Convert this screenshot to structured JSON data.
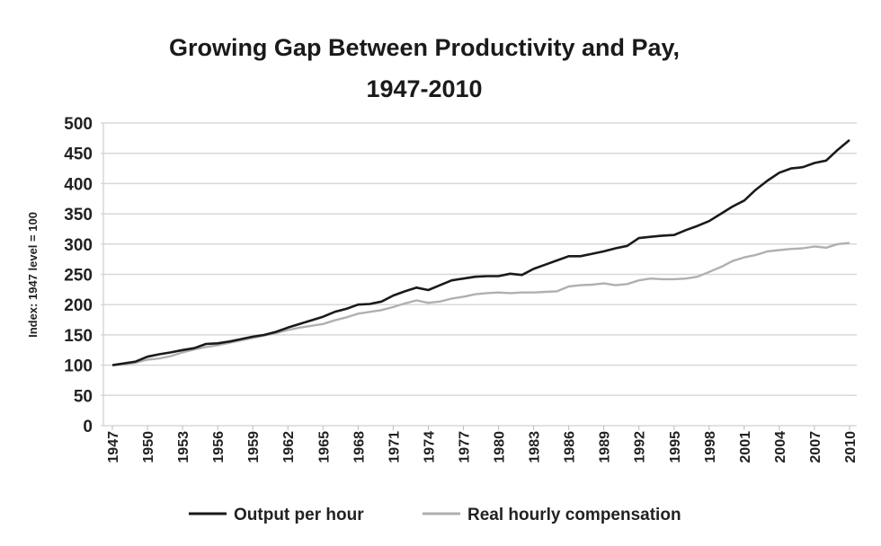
{
  "chart_data": {
    "type": "line",
    "title": "Growing Gap Between Productivity and Pay,",
    "subtitle": "1947-2010",
    "xlabel": "",
    "ylabel": "Index: 1947 level = 100",
    "ylim": [
      0,
      500
    ],
    "yticks": [
      0,
      50,
      100,
      150,
      200,
      250,
      300,
      350,
      400,
      450,
      500
    ],
    "xlim": [
      1947,
      2010
    ],
    "xticks": [
      1947,
      1950,
      1953,
      1956,
      1959,
      1962,
      1965,
      1968,
      1971,
      1974,
      1977,
      1980,
      1983,
      1986,
      1989,
      1992,
      1995,
      1998,
      2001,
      2004,
      2007,
      2010
    ],
    "grid": true,
    "legend_position": "bottom",
    "x": [
      1947,
      1948,
      1949,
      1950,
      1951,
      1952,
      1953,
      1954,
      1955,
      1956,
      1957,
      1958,
      1959,
      1960,
      1961,
      1962,
      1963,
      1964,
      1965,
      1966,
      1967,
      1968,
      1969,
      1970,
      1971,
      1972,
      1973,
      1974,
      1975,
      1976,
      1977,
      1978,
      1979,
      1980,
      1981,
      1982,
      1983,
      1984,
      1985,
      1986,
      1987,
      1988,
      1989,
      1990,
      1991,
      1992,
      1993,
      1994,
      1995,
      1996,
      1997,
      1998,
      1999,
      2000,
      2001,
      2002,
      2003,
      2004,
      2005,
      2006,
      2007,
      2008,
      2009,
      2010
    ],
    "series": [
      {
        "name": "Output per hour",
        "color": "#1a1a1a",
        "values": [
          100,
          103,
          106,
          114,
          118,
          121,
          125,
          128,
          135,
          136,
          139,
          143,
          147,
          150,
          155,
          162,
          168,
          174,
          180,
          188,
          193,
          200,
          201,
          205,
          215,
          222,
          228,
          224,
          232,
          240,
          243,
          246,
          247,
          247,
          251,
          249,
          259,
          266,
          273,
          280,
          280,
          284,
          288,
          293,
          297,
          310,
          312,
          314,
          315,
          323,
          330,
          338,
          350,
          362,
          372,
          390,
          405,
          418,
          425,
          427,
          434,
          438,
          456,
          472
        ]
      },
      {
        "name": "Real hourly compensation",
        "color": "#b0b0b0",
        "values": [
          100,
          101,
          104,
          109,
          111,
          115,
          121,
          126,
          130,
          133,
          137,
          141,
          145,
          149,
          153,
          158,
          162,
          165,
          168,
          174,
          179,
          185,
          188,
          191,
          196,
          202,
          207,
          203,
          205,
          210,
          213,
          217,
          219,
          220,
          219,
          220,
          220,
          221,
          222,
          230,
          232,
          233,
          235,
          232,
          234,
          240,
          243,
          242,
          242,
          243,
          246,
          254,
          262,
          272,
          278,
          282,
          288,
          290,
          292,
          293,
          296,
          294,
          300,
          302
        ]
      }
    ]
  }
}
